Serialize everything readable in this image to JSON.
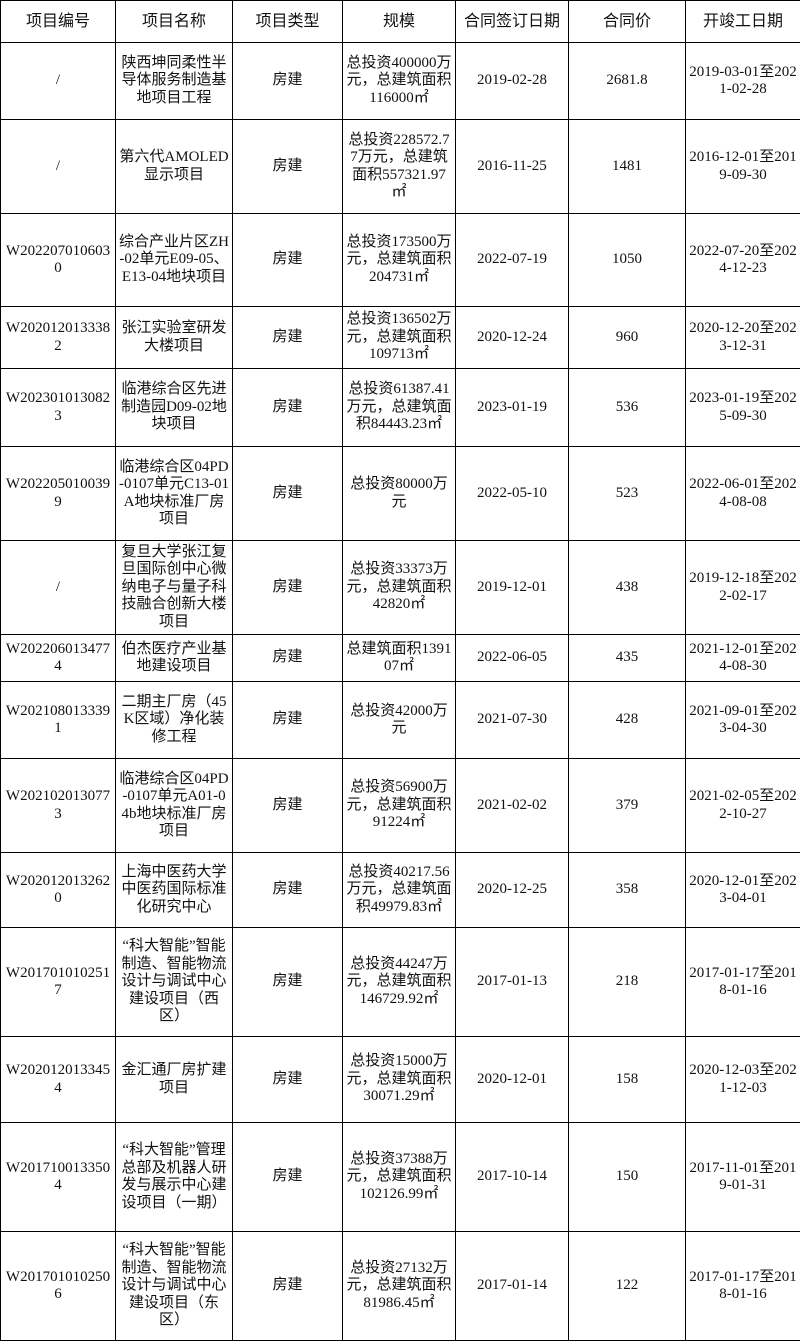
{
  "headers": [
    "项目编号",
    "项目名称",
    "项目类型",
    "规模",
    "合同签订日期",
    "合同价",
    "开竣工日期"
  ],
  "rows": [
    [
      "/",
      "陕西坤同柔性半导体服务制造基地项目工程",
      "房建",
      "总投资400000万元，总建筑面积116000㎡",
      "2019-02-28",
      "2681.8",
      "2019-03-01至2021-02-28"
    ],
    [
      "/",
      "第六代AMOLED显示项目",
      "房建",
      "总投资228572.77万元，总建筑面积557321.97㎡",
      "2016-11-25",
      "1481",
      "2016-12-01至2019-09-30"
    ],
    [
      "W2022070106030",
      "综合产业片区ZH-02单元E09-05、E13-04地块项目",
      "房建",
      "总投资173500万元，总建筑面积204731㎡",
      "2022-07-19",
      "1050",
      "2022-07-20至2024-12-23"
    ],
    [
      "W2020120133382",
      "张江实验室研发大楼项目",
      "房建",
      "总投资136502万元，总建筑面积109713㎡",
      "2020-12-24",
      "960",
      "2020-12-20至2023-12-31"
    ],
    [
      "W2023010130823",
      "临港综合区先进制造园D09-02地块项目",
      "房建",
      "总投资61387.41万元，总建筑面积84443.23㎡",
      "2023-01-19",
      "536",
      "2023-01-19至2025-09-30"
    ],
    [
      "W2022050100399",
      "临港综合区04PD-0107单元C13-01A地块标准厂房项目",
      "房建",
      "总投资80000万元",
      "2022-05-10",
      "523",
      "2022-06-01至2024-08-08"
    ],
    [
      "/",
      "复旦大学张江复旦国际创中心微纳电子与量子科技融合创新大楼项目",
      "房建",
      "总投资33373万元，总建筑面积42820㎡",
      "2019-12-01",
      "438",
      "2019-12-18至2022-02-17"
    ],
    [
      "W2022060134774",
      "伯杰医疗产业基地建设项目",
      "房建",
      "总建筑面积139107㎡",
      "2022-06-05",
      "435",
      "2021-12-01至2024-08-30"
    ],
    [
      "W2021080133391",
      "二期主厂房（45K区域）净化装修工程",
      "房建",
      "总投资42000万元",
      "2021-07-30",
      "428",
      "2021-09-01至2023-04-30"
    ],
    [
      "W2021020130773",
      "临港综合区04PD-0107单元A01-04b地块标准厂房项目",
      "房建",
      "总投资56900万元，总建筑面积91224㎡",
      "2021-02-02",
      "379",
      "2021-02-05至2022-10-27"
    ],
    [
      "W2020120132620",
      "上海中医药大学中医药国际标准化研究中心",
      "房建",
      "总投资40217.56万元，总建筑面积49979.83㎡",
      "2020-12-25",
      "358",
      "2020-12-01至2023-04-01"
    ],
    [
      "W2017010102517",
      "“科大智能”智能制造、智能物流设计与调试中心建设项目（西区）",
      "房建",
      "总投资44247万元，总建筑面积146729.92㎡",
      "2017-01-13",
      "218",
      "2017-01-17至2018-01-16"
    ],
    [
      "W2020120133454",
      "金汇通厂房扩建项目",
      "房建",
      "总投资15000万元，总建筑面积30071.29㎡",
      "2020-12-01",
      "158",
      "2020-12-03至2021-12-03"
    ],
    [
      "W2017100133504",
      "“科大智能”管理总部及机器人研发与展示中心建设项目（一期）",
      "房建",
      "总投资37388万元，总建筑面积102126.99㎡",
      "2017-10-14",
      "150",
      "2017-11-01至2019-01-31"
    ],
    [
      "W2017010102506",
      "“科大智能”智能制造、智能物流设计与调试中心建设项目（东区）",
      "房建",
      "总投资27132万元，总建筑面积81986.45㎡",
      "2017-01-14",
      "122",
      "2017-01-17至2018-01-16"
    ]
  ]
}
